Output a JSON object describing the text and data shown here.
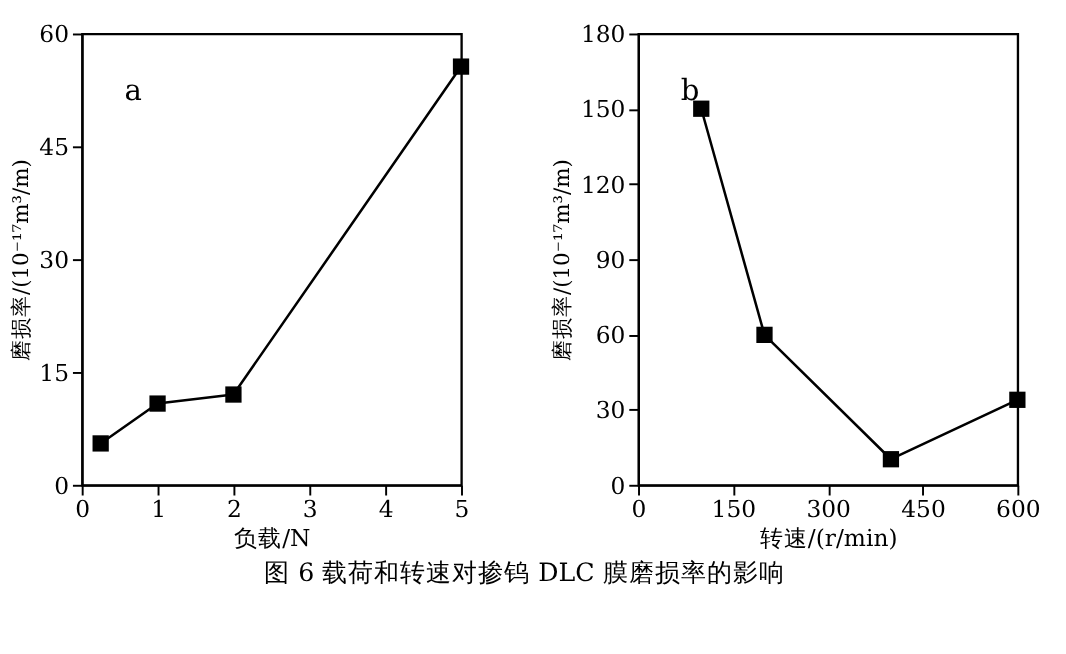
{
  "chart_data": [
    {
      "type": "line",
      "x": [
        0.25,
        1,
        2,
        5
      ],
      "values": [
        5.5,
        10.8,
        12.0,
        55.6
      ],
      "color": "#000000",
      "marker": "square",
      "line_style": "solid",
      "xlim": [
        0,
        5
      ],
      "xticks": [
        0,
        1,
        2,
        3,
        4,
        5
      ],
      "ylim": [
        0,
        60
      ],
      "yticks": [
        0,
        15,
        30,
        45,
        60
      ],
      "xlabel": "负载/N",
      "ylabel": "磨损率/(10⁻¹⁷m³/m)",
      "annotations": [
        "a"
      ],
      "grid": false
    },
    {
      "type": "line",
      "x": [
        100,
        200,
        400,
        600
      ],
      "values": [
        150,
        59.8,
        10.2,
        33.9
      ],
      "color": "#000000",
      "marker": "square",
      "line_style": "solid",
      "xlim": [
        0,
        600
      ],
      "xticks": [
        0,
        150,
        300,
        450,
        600
      ],
      "ylim": [
        0,
        180
      ],
      "yticks": [
        0,
        30,
        60,
        90,
        120,
        150,
        180
      ],
      "xlabel": "转速/(r/min)",
      "ylabel": "磨损率/(10⁻¹⁷m³/m)",
      "annotations": [
        "b",
        "图 6  载荷和转速对掺钨 DLC 膜磨损率的影响"
      ],
      "grid": false
    }
  ]
}
